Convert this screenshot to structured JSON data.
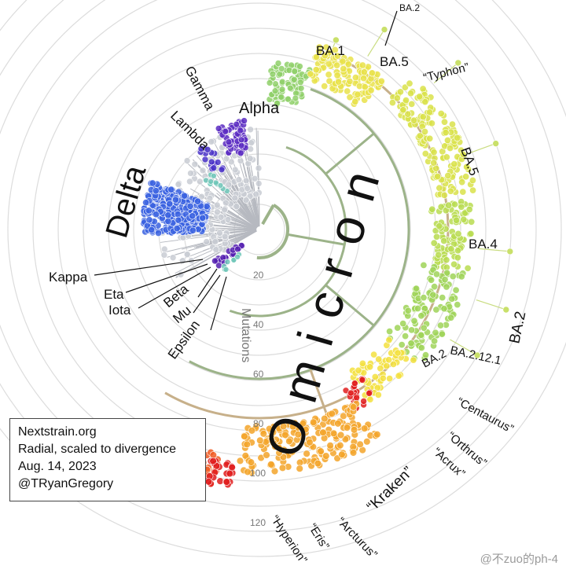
{
  "info_box": {
    "line1": "Nextstrain.org",
    "line2": "Radial, scaled to divergence",
    "line3": "Aug. 14, 2023",
    "line4": "@TRyanGregory"
  },
  "axis": {
    "title": "Mutations",
    "ticks": [
      "20",
      "40",
      "60",
      "80",
      "100",
      "120"
    ]
  },
  "labels": {
    "omicron": "Omicron",
    "delta": "Delta",
    "alpha": "Alpha",
    "gamma": "Gamma",
    "lambda": "Lambda",
    "kappa": "Kappa",
    "eta": "Eta",
    "iota": "Iota",
    "beta": "Beta",
    "mu": "Mu",
    "epsilon": "Epsilon",
    "ba1": "BA.1",
    "ba2_top": "BA.2",
    "ba5_top": "BA.5",
    "typhon": "“Typhon”",
    "ba5_right": "BA.5",
    "ba4": "BA.4",
    "ba2_right": "BA.2",
    "ba2121": "BA.2.12.1",
    "ba2_inner": "BA.2",
    "centaurus": "“Centaurus”",
    "orthrus": "“Orthrus”",
    "acrux": "“Acrux”",
    "kraken": "“Kraken”",
    "arcturus": "“Arcturus”",
    "eris": "“Eris”",
    "hyperion": "“Hyperion”"
  },
  "watermark": "@不zuo的ph-4",
  "colors": {
    "delta": "#3a62e0",
    "alpha": "#5b2bc2",
    "gamma": "#4a33c8",
    "beta": "#5520b0",
    "other_lineages": "#c9ccd3",
    "teal": "#6ec7b8",
    "ba1": "#8fd06a",
    "ba5": "#f0e24a",
    "ba4": "#b9dc50",
    "ba2": "#9fd458",
    "kraken": "#f3a52a",
    "hyperion": "#f05a22",
    "eris": "#e11d1d",
    "omicron_branch": "#9cb389",
    "ring": "#dcdcdc"
  }
}
